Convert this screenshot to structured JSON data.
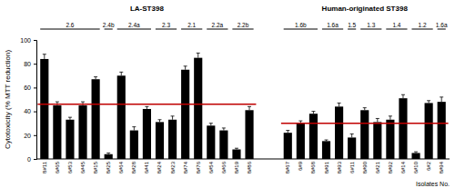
{
  "chart_data": {
    "type": "bar",
    "y_label": "Cytotoxicity (% MTT reduction)",
    "x_label": "Isolates No.",
    "ylim": [
      0,
      100
    ],
    "yticks": [
      0,
      20,
      40,
      60,
      80,
      100
    ],
    "color": "#000000",
    "groups": [
      {
        "name": "LA-ST398",
        "categories": [
          "8#11",
          "6#65",
          "6#53",
          "6#45",
          "8#15",
          "8#25",
          "6#64",
          "8#28",
          "6#41",
          "8#24",
          "8#23",
          "8#74",
          "8#76",
          "6#54",
          "6#66",
          "8#19",
          "8#86"
        ],
        "values": [
          84,
          45,
          33,
          45,
          67,
          4,
          70,
          24,
          42,
          31,
          33,
          75,
          85,
          28,
          24,
          8,
          41
        ],
        "errors": [
          4,
          3,
          2,
          3,
          2,
          1,
          3,
          3,
          2,
          2,
          3,
          3,
          4,
          2,
          2,
          1,
          3
        ],
        "reference": 46,
        "reference_color": "#c00000",
        "subgroups": [
          {
            "label": "2.6",
            "members": [
              "8#11",
              "6#65",
              "6#53",
              "6#45",
              "8#15"
            ]
          },
          {
            "label": "2.4b",
            "members": [
              "8#25"
            ]
          },
          {
            "label": "2.4a",
            "members": [
              "6#64",
              "8#28",
              "6#41"
            ]
          },
          {
            "label": "2.3",
            "members": [
              "8#24",
              "8#23"
            ]
          },
          {
            "label": "2.1",
            "members": [
              "8#74",
              "8#76"
            ]
          },
          {
            "label": "2.2a",
            "members": [
              "6#54",
              "6#66"
            ]
          },
          {
            "label": "2.2b",
            "members": [
              "8#19",
              "8#86"
            ]
          }
        ]
      },
      {
        "name": "Human-originated  ST398",
        "categories": [
          "8#67",
          "6#9",
          "8#68",
          "8#91",
          "8#93",
          "6#11",
          "8#90",
          "6#21",
          "8#92",
          "6#14",
          "6#10",
          "6#2",
          "8#94"
        ],
        "values": [
          22,
          30,
          38,
          15,
          44,
          18,
          41,
          31,
          33,
          51,
          5,
          47,
          48
        ],
        "errors": [
          2,
          2,
          2,
          1,
          3,
          3,
          2,
          3,
          3,
          3,
          1,
          2,
          4
        ],
        "reference": 30,
        "reference_color": "#c00000",
        "subgroups": [
          {
            "label": "1.6b",
            "members": [
              "8#67",
              "6#9",
              "8#68"
            ]
          },
          {
            "label": "1.6a",
            "members": [
              "8#91",
              "8#93"
            ]
          },
          {
            "label": "1.5",
            "members": [
              "6#11"
            ]
          },
          {
            "label": "1.3",
            "members": [
              "8#90",
              "6#21"
            ]
          },
          {
            "label": "1.4",
            "members": [
              "8#92",
              "6#14"
            ]
          },
          {
            "label": "1.2",
            "members": [
              "6#10",
              "6#2"
            ]
          },
          {
            "label": "1.6a",
            "members": [
              "8#94"
            ]
          }
        ]
      }
    ]
  }
}
